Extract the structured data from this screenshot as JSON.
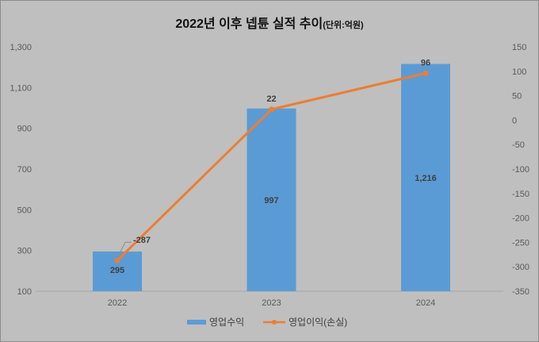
{
  "chart_data": {
    "type": "bar+line",
    "title": "2022년 이후 넵튠 실적 추이",
    "title_unit": "(단위:억원)",
    "categories": [
      "2022",
      "2023",
      "2024"
    ],
    "series": [
      {
        "name": "영업수익",
        "type": "bar",
        "axis": "left",
        "color": "#5b9bd5",
        "values": [
          295,
          997,
          1216
        ],
        "labels": [
          "295",
          "997",
          "1,216"
        ]
      },
      {
        "name": "영업이익(손실)",
        "type": "line",
        "axis": "right",
        "color": "#ed7d31",
        "values": [
          -287,
          22,
          96
        ],
        "labels": [
          "-287",
          "22",
          "96"
        ]
      }
    ],
    "left_axis": {
      "min": 100,
      "max": 1300,
      "ticks": [
        100,
        300,
        500,
        700,
        900,
        1100,
        1300
      ],
      "tick_labels": [
        "100",
        "300",
        "500",
        "700",
        "900",
        "1,100",
        "1,300"
      ]
    },
    "right_axis": {
      "min": -350,
      "max": 150,
      "ticks": [
        -350,
        -300,
        -250,
        -200,
        -150,
        -100,
        -50,
        0,
        50,
        100,
        150
      ],
      "tick_labels": [
        "-350",
        "-300",
        "-250",
        "-200",
        "-150",
        "-100",
        "-50",
        "0",
        "50",
        "100",
        "150"
      ]
    },
    "grid": false,
    "legend_position": "bottom"
  }
}
